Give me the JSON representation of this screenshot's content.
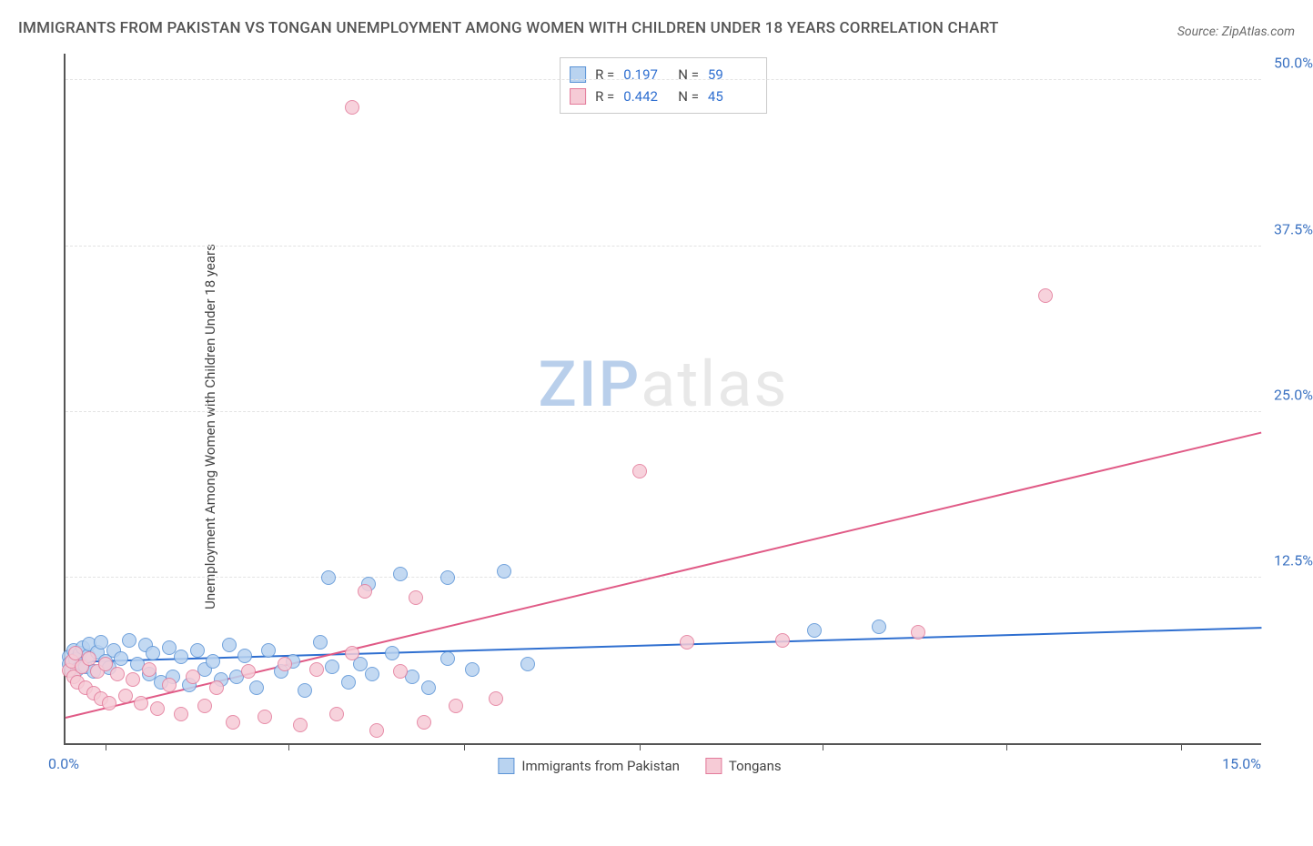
{
  "header": {
    "title": "IMMIGRANTS FROM PAKISTAN VS TONGAN UNEMPLOYMENT AMONG WOMEN WITH CHILDREN UNDER 18 YEARS CORRELATION CHART",
    "source_label": "Source: ZipAtlas.com"
  },
  "chart": {
    "type": "scatter",
    "ylabel": "Unemployment Among Women with Children Under 18 years",
    "x_range": [
      0,
      15
    ],
    "y_range": [
      0,
      52
    ],
    "x_origin_label": "0.0%",
    "x_max_label": "15.0%",
    "y_ticks": [
      {
        "v": 12.5,
        "label": "12.5%"
      },
      {
        "v": 25.0,
        "label": "25.0%"
      },
      {
        "v": 37.5,
        "label": "37.5%"
      },
      {
        "v": 50.0,
        "label": "50.0%"
      }
    ],
    "x_tick_positions": [
      0.5,
      2.8,
      5.0,
      7.2,
      9.5,
      11.8,
      14.0
    ],
    "background_color": "#ffffff",
    "grid_color": "#e3e3e3",
    "axis_color": "#555555",
    "tick_label_color": "#3b72c2",
    "series": [
      {
        "key": "pakistan",
        "label": "Immigrants from Pakistan",
        "fill": "#b9d3f0",
        "stroke": "#5a93d6",
        "marker_radius": 8,
        "trend": {
          "y_at_x0": 6.2,
          "y_at_xmax": 8.8,
          "color": "#2f6fd0",
          "width": 2
        },
        "R": "0.197",
        "N": "59",
        "points": [
          [
            0.05,
            6.5
          ],
          [
            0.05,
            6.0
          ],
          [
            0.08,
            5.5
          ],
          [
            0.1,
            7.0
          ],
          [
            0.12,
            6.3
          ],
          [
            0.15,
            5.6
          ],
          [
            0.18,
            6.8
          ],
          [
            0.2,
            6.0
          ],
          [
            0.22,
            7.2
          ],
          [
            0.25,
            5.8
          ],
          [
            0.28,
            6.6
          ],
          [
            0.3,
            7.5
          ],
          [
            0.35,
            5.4
          ],
          [
            0.4,
            6.9
          ],
          [
            0.45,
            7.6
          ],
          [
            0.5,
            6.2
          ],
          [
            0.55,
            5.7
          ],
          [
            0.6,
            7.0
          ],
          [
            0.7,
            6.4
          ],
          [
            0.8,
            7.8
          ],
          [
            0.9,
            6.0
          ],
          [
            1.0,
            7.4
          ],
          [
            1.05,
            5.2
          ],
          [
            1.1,
            6.8
          ],
          [
            1.2,
            4.6
          ],
          [
            1.3,
            7.2
          ],
          [
            1.35,
            5.0
          ],
          [
            1.45,
            6.5
          ],
          [
            1.55,
            4.4
          ],
          [
            1.65,
            7.0
          ],
          [
            1.75,
            5.6
          ],
          [
            1.85,
            6.2
          ],
          [
            1.95,
            4.8
          ],
          [
            2.05,
            7.4
          ],
          [
            2.15,
            5.0
          ],
          [
            2.25,
            6.6
          ],
          [
            2.4,
            4.2
          ],
          [
            2.55,
            7.0
          ],
          [
            2.7,
            5.4
          ],
          [
            2.85,
            6.2
          ],
          [
            3.0,
            4.0
          ],
          [
            3.2,
            7.6
          ],
          [
            3.35,
            5.8
          ],
          [
            3.3,
            12.5
          ],
          [
            3.55,
            4.6
          ],
          [
            3.7,
            6.0
          ],
          [
            3.85,
            5.2
          ],
          [
            3.8,
            12.0
          ],
          [
            4.1,
            6.8
          ],
          [
            4.2,
            12.8
          ],
          [
            4.35,
            5.0
          ],
          [
            4.55,
            4.2
          ],
          [
            4.8,
            6.4
          ],
          [
            4.8,
            12.5
          ],
          [
            5.1,
            5.6
          ],
          [
            5.5,
            13.0
          ],
          [
            5.8,
            6.0
          ],
          [
            9.4,
            8.5
          ],
          [
            10.2,
            8.8
          ]
        ]
      },
      {
        "key": "tongans",
        "label": "Tongans",
        "fill": "#f6cbd6",
        "stroke": "#e37a9a",
        "marker_radius": 8,
        "trend": {
          "y_at_x0": 2.0,
          "y_at_xmax": 23.5,
          "color": "#e05a86",
          "width": 2
        },
        "R": "0.442",
        "N": "45",
        "points": [
          [
            0.05,
            5.5
          ],
          [
            0.08,
            6.2
          ],
          [
            0.1,
            5.0
          ],
          [
            0.12,
            6.8
          ],
          [
            0.15,
            4.6
          ],
          [
            0.2,
            5.8
          ],
          [
            0.25,
            4.2
          ],
          [
            0.3,
            6.4
          ],
          [
            0.35,
            3.8
          ],
          [
            0.4,
            5.4
          ],
          [
            0.45,
            3.4
          ],
          [
            0.5,
            6.0
          ],
          [
            0.55,
            3.0
          ],
          [
            0.65,
            5.2
          ],
          [
            0.75,
            3.6
          ],
          [
            0.85,
            4.8
          ],
          [
            0.95,
            3.0
          ],
          [
            1.05,
            5.6
          ],
          [
            1.15,
            2.6
          ],
          [
            1.3,
            4.4
          ],
          [
            1.45,
            2.2
          ],
          [
            1.6,
            5.0
          ],
          [
            1.75,
            2.8
          ],
          [
            1.9,
            4.2
          ],
          [
            2.1,
            1.6
          ],
          [
            2.3,
            5.4
          ],
          [
            2.5,
            2.0
          ],
          [
            2.75,
            6.0
          ],
          [
            2.95,
            1.4
          ],
          [
            3.15,
            5.6
          ],
          [
            3.4,
            2.2
          ],
          [
            3.6,
            6.8
          ],
          [
            3.75,
            11.5
          ],
          [
            3.9,
            1.0
          ],
          [
            4.2,
            5.4
          ],
          [
            4.4,
            11.0
          ],
          [
            4.5,
            1.6
          ],
          [
            4.9,
            2.8
          ],
          [
            5.4,
            3.4
          ],
          [
            7.2,
            20.5
          ],
          [
            7.8,
            7.6
          ],
          [
            9.0,
            7.8
          ],
          [
            10.7,
            8.4
          ],
          [
            12.3,
            33.8
          ],
          [
            3.6,
            48.0
          ]
        ]
      }
    ],
    "stats_box": {
      "rows": [
        {
          "swatch_fill": "#b9d3f0",
          "swatch_stroke": "#5a93d6",
          "R_label": "R =",
          "R_val": "0.197",
          "N_label": "N =",
          "N_val": "59"
        },
        {
          "swatch_fill": "#f6cbd6",
          "swatch_stroke": "#e37a9a",
          "R_label": "R =",
          "R_val": "0.442",
          "N_label": "N =",
          "N_val": "45"
        }
      ]
    },
    "watermark": {
      "part1": "ZIP",
      "part2": "atlas"
    }
  }
}
